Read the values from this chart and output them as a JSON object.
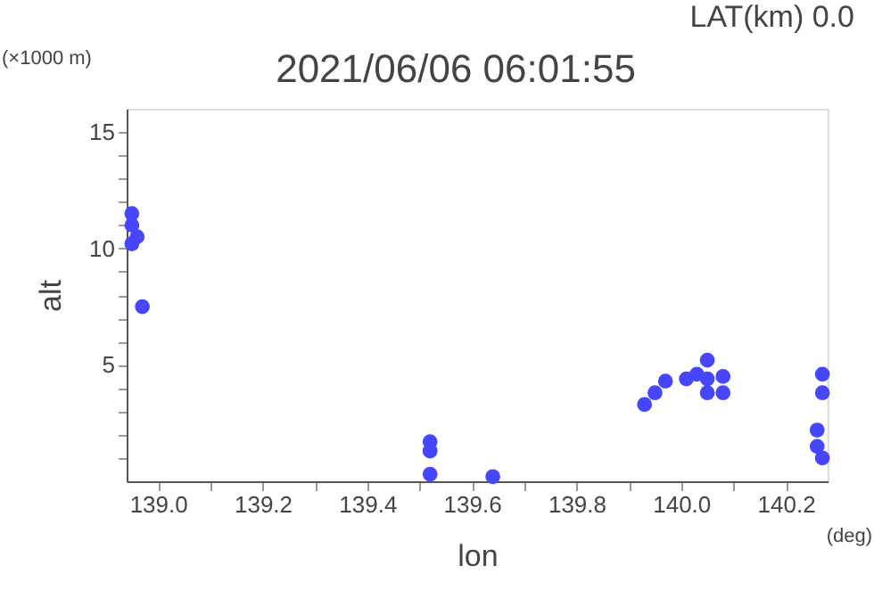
{
  "chart_data": {
    "type": "scatter",
    "title": "2021/06/06 06:01:55",
    "subtitle": "LAT(km) 0.0",
    "xlabel": "lon",
    "ylabel": "alt",
    "annotations": [
      "(×1000 m)",
      "(deg)"
    ],
    "x": [
      138.95,
      138.95,
      138.96,
      138.95,
      138.97,
      139.52,
      139.52,
      139.52,
      139.64,
      139.93,
      139.95,
      139.97,
      140.01,
      140.03,
      140.05,
      140.05,
      140.05,
      140.08,
      140.08,
      140.27,
      140.27,
      140.26,
      140.26,
      140.27
    ],
    "series": [
      {
        "color": "#4646ff",
        "values": [
          11.5,
          11.0,
          10.5,
          10.2,
          7.5,
          1.7,
          1.3,
          0.3,
          0.2,
          3.3,
          3.8,
          4.3,
          4.4,
          4.6,
          5.2,
          4.4,
          3.8,
          4.5,
          3.8,
          4.6,
          3.8,
          2.2,
          1.5,
          1.0
        ]
      }
    ],
    "marker": "circle",
    "grid": false,
    "xlim": [
      138.94,
      140.28
    ],
    "ylim": [
      0,
      16
    ],
    "xticks": [
      {
        "value": 139.0,
        "label": "139.0"
      },
      {
        "value": 139.1,
        "label": null
      },
      {
        "value": 139.2,
        "label": "139.2"
      },
      {
        "value": 139.3,
        "label": null
      },
      {
        "value": 139.4,
        "label": "139.4"
      },
      {
        "value": 139.5,
        "label": null
      },
      {
        "value": 139.6,
        "label": "139.6"
      },
      {
        "value": 139.7,
        "label": null
      },
      {
        "value": 139.8,
        "label": "139.8"
      },
      {
        "value": 139.9,
        "label": null
      },
      {
        "value": 140.0,
        "label": "140.0"
      },
      {
        "value": 140.1,
        "label": null
      },
      {
        "value": 140.2,
        "label": "140.2"
      }
    ],
    "yticks": [
      {
        "value": 1,
        "label": null
      },
      {
        "value": 2,
        "label": null
      },
      {
        "value": 3,
        "label": null
      },
      {
        "value": 4,
        "label": null
      },
      5,
      {
        "value": 6,
        "label": null
      },
      {
        "value": 7,
        "label": null
      },
      {
        "value": 8,
        "label": null
      },
      {
        "value": 9,
        "label": null
      },
      10,
      {
        "value": 11,
        "label": null
      },
      {
        "value": 12,
        "label": null
      },
      {
        "value": 13,
        "label": null
      },
      {
        "value": 14,
        "label": null
      },
      15
    ]
  }
}
